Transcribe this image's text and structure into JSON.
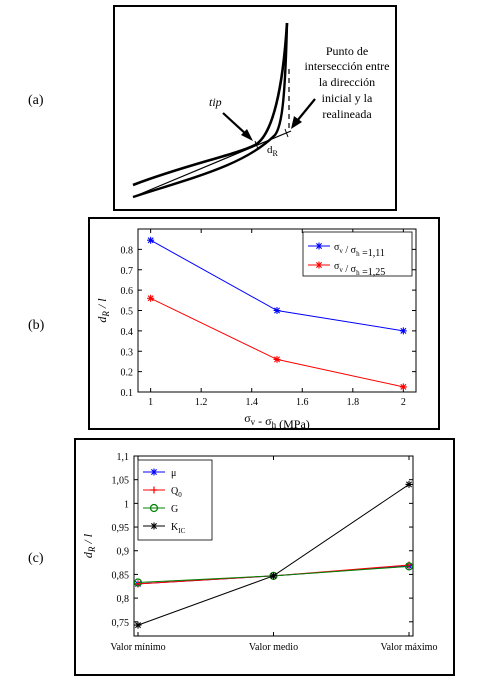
{
  "labels": {
    "a": "(a)",
    "b": "(b)",
    "c": "(c)"
  },
  "diagram": {
    "tip": "tip",
    "annotation_lines": [
      "Punto de",
      "intersección entre",
      "la dirección",
      "inicial y la",
      "realineada"
    ],
    "dr": "d",
    "dr_sub": "R"
  },
  "chart_data": [
    {
      "type": "line",
      "x": [
        1,
        1.5,
        2
      ],
      "series": [
        {
          "name": "σv / σh =1,11",
          "values": [
            0.845,
            0.5,
            0.4
          ],
          "color": "#0000ff"
        },
        {
          "name": "σv / σh =1,25",
          "values": [
            0.56,
            0.26,
            0.125
          ],
          "color": "#ff0000"
        }
      ],
      "xlabel": "σv - σh (MPa)",
      "ylabel": "dR / l",
      "xlim": [
        0.95,
        2.05
      ],
      "ylim": [
        0.1,
        0.9
      ],
      "xticks": [
        "1",
        "1.2",
        "1.4",
        "1.6",
        "1.8",
        "2"
      ],
      "yticks": [
        "0.1",
        "0.2",
        "0.3",
        "0.4",
        "0.5",
        "0.6",
        "0.7",
        "0.8"
      ],
      "legend": "top-right",
      "marker": "*"
    },
    {
      "type": "line",
      "categories": [
        "Valor mínimo",
        "Valor medio",
        "Valor máximo"
      ],
      "series": [
        {
          "name": "μ",
          "values": [
            0.83,
            0.847,
            0.868
          ],
          "color": "#0000ff",
          "marker": "*"
        },
        {
          "name": "Q0",
          "values": [
            0.83,
            0.847,
            0.87
          ],
          "color": "#ff0000",
          "marker": "+"
        },
        {
          "name": "G",
          "values": [
            0.833,
            0.847,
            0.867
          ],
          "color": "#008000",
          "marker": "o"
        },
        {
          "name": "KIC",
          "values": [
            0.743,
            0.847,
            1.04
          ],
          "color": "#000000",
          "marker": "*"
        }
      ],
      "ylabel": "dR / l",
      "ylim": [
        0.72,
        1.1
      ],
      "yticks": [
        "0,75",
        "0,8",
        "0,85",
        "0,9",
        "0,95",
        "1",
        "1,05",
        "1,1"
      ],
      "legend": "top-left"
    }
  ]
}
